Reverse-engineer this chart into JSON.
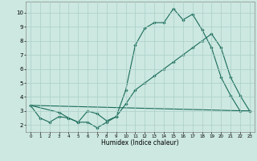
{
  "xlabel": "Humidex (Indice chaleur)",
  "background_color": "#cce8e0",
  "grid_color": "#aacfc8",
  "line_color": "#1a6b5a",
  "xlim": [
    -0.5,
    23.5
  ],
  "ylim": [
    1.5,
    10.8
  ],
  "xticks": [
    0,
    1,
    2,
    3,
    4,
    5,
    6,
    7,
    8,
    9,
    10,
    11,
    12,
    13,
    14,
    15,
    16,
    17,
    18,
    19,
    20,
    21,
    22,
    23
  ],
  "yticks": [
    2,
    3,
    4,
    5,
    6,
    7,
    8,
    9,
    10
  ],
  "line1_x": [
    0,
    1,
    2,
    3,
    4,
    5,
    6,
    7,
    8,
    9,
    10,
    11,
    12,
    13,
    14,
    15,
    16,
    17,
    18,
    19,
    20,
    21,
    22,
    23
  ],
  "line1_y": [
    3.4,
    2.5,
    2.2,
    2.6,
    2.5,
    2.2,
    2.2,
    1.8,
    2.2,
    2.6,
    4.5,
    7.7,
    8.9,
    9.3,
    9.3,
    10.3,
    9.5,
    9.9,
    8.8,
    7.5,
    5.4,
    4.1,
    3.0,
    3.0
  ],
  "line2_x": [
    0,
    3,
    4,
    5,
    6,
    7,
    8,
    9,
    10,
    11,
    12,
    13,
    14,
    15,
    16,
    17,
    18,
    19,
    20,
    21,
    22,
    23
  ],
  "line2_y": [
    3.4,
    2.9,
    2.5,
    2.2,
    3.0,
    2.8,
    2.3,
    2.6,
    3.5,
    4.5,
    5.0,
    5.5,
    6.0,
    6.5,
    7.0,
    7.5,
    8.0,
    8.5,
    7.5,
    5.4,
    4.1,
    3.0
  ],
  "line3_x": [
    0,
    23
  ],
  "line3_y": [
    3.4,
    3.0
  ]
}
